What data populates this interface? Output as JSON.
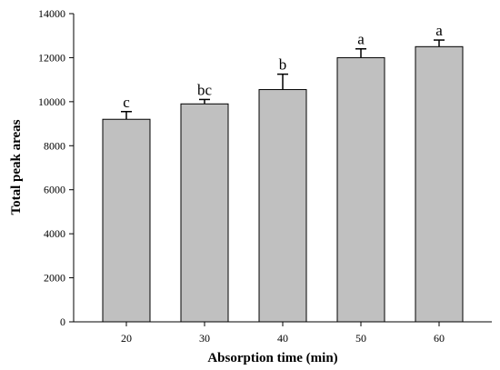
{
  "chart_data": {
    "type": "bar",
    "xlabel": "Absorption time (min)",
    "ylabel": "Total peak areas",
    "categories": [
      "20",
      "30",
      "40",
      "50",
      "60"
    ],
    "values": [
      9200,
      9900,
      10550,
      12000,
      12500
    ],
    "errors": [
      350,
      200,
      700,
      400,
      300
    ],
    "significance": [
      "c",
      "bc",
      "b",
      "a",
      "a"
    ],
    "ylim": [
      0,
      14000
    ],
    "yticks": [
      "0",
      "2000",
      "4000",
      "6000",
      "8000",
      "10000",
      "12000",
      "14000"
    ],
    "grid": false,
    "legend": "none",
    "colors": {
      "bar_fill": "#c0c0c0",
      "bar_stroke": "#000000"
    }
  }
}
